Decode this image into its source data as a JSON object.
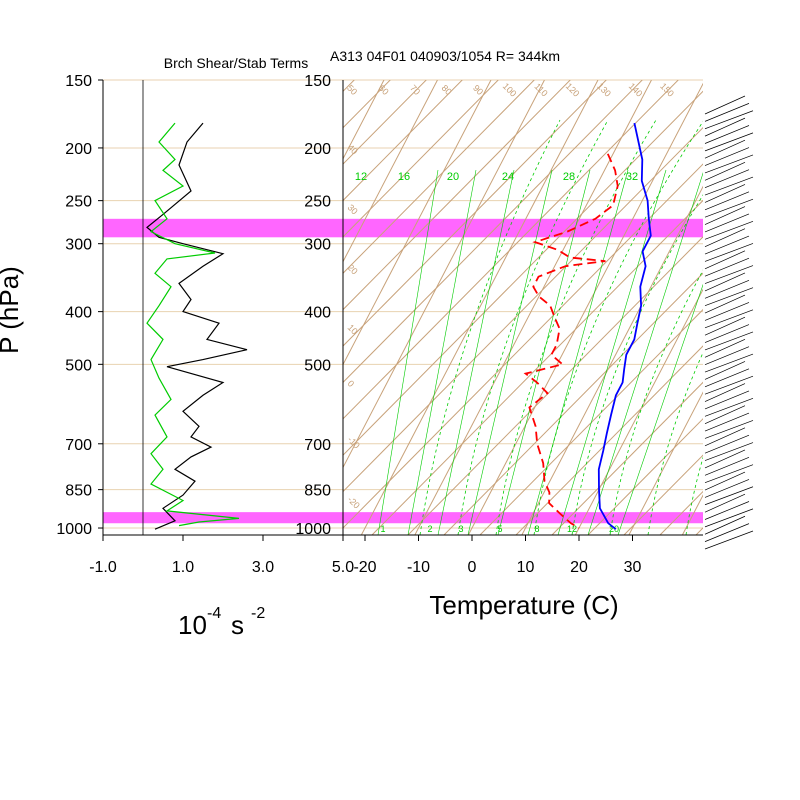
{
  "header": {
    "left_title": "Brch Shear/Stab Terms",
    "right_title": "A313 04F01 040903/1054 R= 344km"
  },
  "colors": {
    "highlight": "#ff66ff",
    "isobar": "#e8d2b0",
    "skew_lines": "#c8a27a",
    "mixing_ratio": "#00cc00",
    "temperature": "#0000ff",
    "dewpoint": "#ff0000",
    "shear_term": "#000000",
    "stability_term": "#00cc00",
    "frame": "#000000"
  },
  "chart_data": [
    {
      "type": "line",
      "title": "Brch Shear/Stab Terms",
      "ylabel": "P (hPa)",
      "xlabel": "10-4 s -2",
      "xlabel_parts": {
        "base": "10",
        "exp1": "-4",
        "unit": "s",
        "exp2": "-2"
      },
      "y_scale": "log",
      "ylim": [
        1030,
        150
      ],
      "xlim": [
        -1.0,
        5.0
      ],
      "pressure_ticks": [
        150,
        200,
        250,
        300,
        400,
        500,
        700,
        850,
        1000
      ],
      "x_tick_labels": [
        "-1.0",
        "1.0",
        "3.0",
        "5.0"
      ],
      "x_ticks": [
        -1.0,
        1.0,
        3.0,
        5.0
      ],
      "highlight_bands_hpa": [
        [
          270,
          292
        ],
        [
          935,
          980
        ]
      ],
      "series": [
        {
          "key": "black",
          "points": [
            [
              1.5,
              180
            ],
            [
              1.1,
              195
            ],
            [
              0.9,
              215
            ],
            [
              1.2,
              240
            ],
            [
              0.5,
              265
            ],
            [
              0.1,
              280
            ],
            [
              0.4,
              292
            ],
            [
              1.0,
              300
            ],
            [
              2.0,
              313
            ],
            [
              1.5,
              330
            ],
            [
              0.9,
              355
            ],
            [
              1.2,
              380
            ],
            [
              1.0,
              400
            ],
            [
              1.9,
              420
            ],
            [
              1.6,
              450
            ],
            [
              2.6,
              470
            ],
            [
              1.5,
              490
            ],
            [
              0.6,
              505
            ],
            [
              2.0,
              540
            ],
            [
              1.5,
              570
            ],
            [
              1.0,
              610
            ],
            [
              1.4,
              650
            ],
            [
              1.2,
              680
            ],
            [
              1.7,
              710
            ],
            [
              1.2,
              740
            ],
            [
              0.8,
              780
            ],
            [
              1.3,
              820
            ],
            [
              1.0,
              870
            ],
            [
              0.5,
              920
            ],
            [
              0.8,
              970
            ],
            [
              0.3,
              1005
            ]
          ]
        },
        {
          "key": "green",
          "points": [
            [
              0.8,
              180
            ],
            [
              0.4,
              195
            ],
            [
              0.8,
              210
            ],
            [
              0.5,
              220
            ],
            [
              1.0,
              235
            ],
            [
              0.3,
              250
            ],
            [
              0.6,
              270
            ],
            [
              0.2,
              285
            ],
            [
              0.8,
              300
            ],
            [
              1.8,
              312
            ],
            [
              0.6,
              320
            ],
            [
              0.3,
              340
            ],
            [
              0.7,
              360
            ],
            [
              0.4,
              390
            ],
            [
              0.1,
              420
            ],
            [
              0.5,
              450
            ],
            [
              0.2,
              490
            ],
            [
              0.4,
              530
            ],
            [
              0.7,
              580
            ],
            [
              0.3,
              620
            ],
            [
              0.6,
              680
            ],
            [
              0.2,
              730
            ],
            [
              0.5,
              780
            ],
            [
              0.2,
              830
            ],
            [
              1.0,
              890
            ],
            [
              0.6,
              930
            ],
            [
              2.4,
              960
            ],
            [
              1.4,
              975
            ],
            [
              0.9,
              990
            ]
          ]
        }
      ]
    },
    {
      "type": "line",
      "subtype": "skew-T log-P",
      "title": "A313 04F01 040903/1054 R= 344km",
      "xlabel": "Temperature (C)",
      "y_scale": "log",
      "ylim": [
        1030,
        150
      ],
      "xlim": [
        -25,
        43
      ],
      "x_ticks": [
        -20,
        -10,
        0,
        10,
        20,
        30
      ],
      "x_tick_labels": [
        "-20",
        "-10",
        "0",
        "10",
        "20",
        "30"
      ],
      "pressure_ticks": [
        150,
        200,
        250,
        300,
        400,
        500,
        700,
        850,
        1000
      ],
      "mixing_ratio_labels_top": [
        "12",
        "16",
        "20",
        "24",
        "28",
        "32"
      ],
      "mixing_ratio_labels_bottom": [
        "1",
        "2",
        "3",
        "5",
        "8",
        "12",
        "20"
      ],
      "theta_labels_top": [
        "50",
        "60",
        "70",
        "80",
        "90",
        "100",
        "110",
        "120",
        "130",
        "140",
        "150"
      ],
      "theta_labels_left": [
        "40",
        "30",
        "20",
        "10",
        "0",
        "-10",
        "-20",
        "-30"
      ],
      "series": [
        {
          "key": "temperature",
          "style": "solid",
          "points": [
            [
              -9,
              180
            ],
            [
              -4,
              210
            ],
            [
              -2,
              230
            ],
            [
              1,
              250
            ],
            [
              3,
              270
            ],
            [
              5,
              290
            ],
            [
              5,
              310
            ],
            [
              7,
              330
            ],
            [
              8,
              360
            ],
            [
              10,
              390
            ],
            [
              11,
              420
            ],
            [
              12,
              450
            ],
            [
              12,
              480
            ],
            [
              13,
              510
            ],
            [
              14,
              540
            ],
            [
              14,
              570
            ],
            [
              15,
              620
            ],
            [
              16,
              670
            ],
            [
              17,
              720
            ],
            [
              18,
              780
            ],
            [
              20,
              850
            ],
            [
              22,
              920
            ],
            [
              25,
              980
            ],
            [
              27,
              1005
            ]
          ]
        },
        {
          "key": "dewpoint",
          "style": "dashed",
          "points": [
            [
              -11,
              205
            ],
            [
              -8,
              220
            ],
            [
              -6,
              235
            ],
            [
              -5,
              255
            ],
            [
              -7,
              270
            ],
            [
              -11,
              285
            ],
            [
              -16,
              298
            ],
            [
              -11,
              308
            ],
            [
              -8,
              318
            ],
            [
              -1,
              323
            ],
            [
              -8,
              330
            ],
            [
              -12,
              345
            ],
            [
              -12,
              360
            ],
            [
              -10,
              375
            ],
            [
              -7,
              390
            ],
            [
              -5,
              410
            ],
            [
              -3,
              430
            ],
            [
              -2,
              460
            ],
            [
              -2,
              480
            ],
            [
              1,
              500
            ],
            [
              -5,
              520
            ],
            [
              -2,
              540
            ],
            [
              1,
              565
            ],
            [
              -1,
              600
            ],
            [
              2,
              650
            ],
            [
              4,
              700
            ],
            [
              7,
              760
            ],
            [
              9,
              820
            ],
            [
              11,
              860
            ],
            [
              12,
              900
            ],
            [
              15,
              940
            ],
            [
              18,
              980
            ],
            [
              20,
              1000
            ]
          ]
        }
      ],
      "wind_barbs": {
        "count": 60,
        "side": "right"
      }
    }
  ],
  "axis_titles": {
    "pressure": "P (hPa)",
    "temperature": "Temperature (C)"
  }
}
